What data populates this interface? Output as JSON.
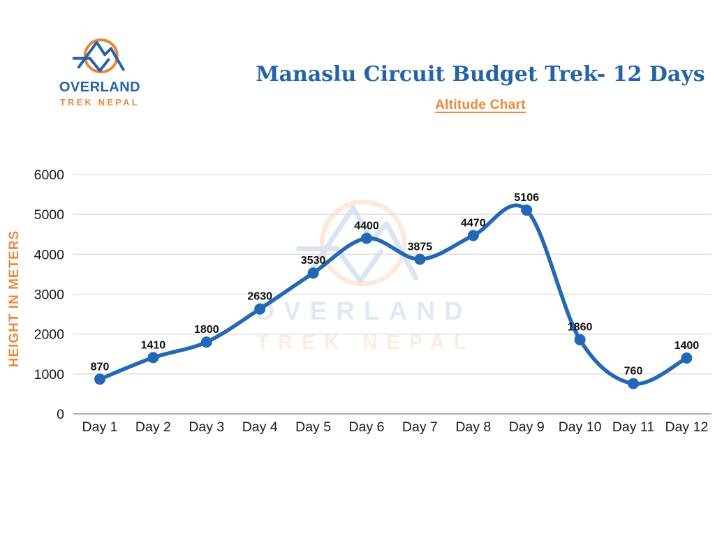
{
  "brand": {
    "name_line1": "OVERLAND",
    "name_line2": "TREK NEPAL"
  },
  "header": {
    "title": "Manaslu Circuit Budget Trek- 12 Days",
    "subtitle": "Altitude Chart"
  },
  "watermark": {
    "line1": "OVERLAND",
    "line2": "TREK NEPAL"
  },
  "colors": {
    "brand_blue": "#2563a8",
    "accent_orange": "#ED8733",
    "axis_orange": "#E98C3E",
    "line_blue": "#2268B4",
    "label_dark": "#1a1a1a",
    "grid_gray": "#dcdcdc",
    "axis_gray": "#b0b0b0",
    "watermark_blue": "rgba(34,104,180,0.14)",
    "watermark_orange": "rgba(237,135,51,0.16)"
  },
  "chart_data": {
    "type": "line",
    "title": "Altitude Chart",
    "categories": [
      "Day 1",
      "Day 2",
      "Day 3",
      "Day 4",
      "Day 5",
      "Day 6",
      "Day 7",
      "Day 8",
      "Day 9",
      "Day 10",
      "Day 11",
      "Day 12"
    ],
    "values": [
      870,
      1410,
      1800,
      2630,
      3530,
      4400,
      3875,
      4470,
      5106,
      1860,
      760,
      1400
    ],
    "xlabel": "",
    "ylabel": "HEIGHT IN METERS",
    "ylim": [
      0,
      6000
    ],
    "yticks": [
      0,
      1000,
      2000,
      3000,
      4000,
      5000,
      6000
    ],
    "grid": true,
    "legend_position": "none",
    "line_style": "smooth",
    "marker": "circle",
    "data_labels": true
  }
}
